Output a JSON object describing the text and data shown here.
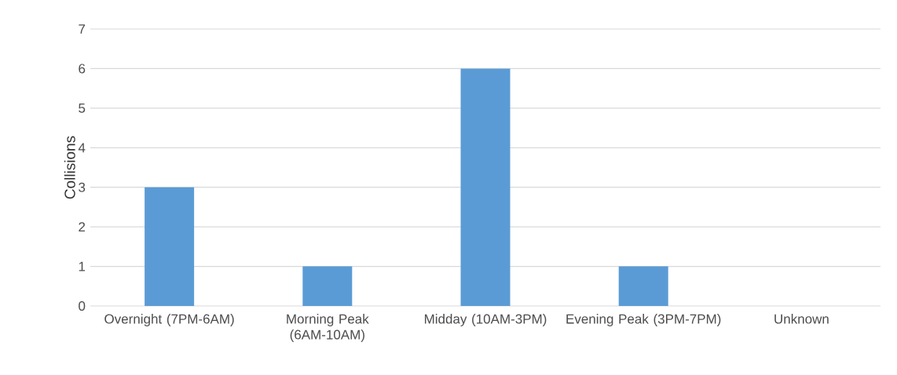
{
  "chart_data": {
    "type": "bar",
    "ylabel": "Collisions",
    "categories": [
      "Overnight (7PM-6AM)",
      "Morning Peak (6AM-10AM)",
      "Midday (10AM-3PM)",
      "Evening Peak (3PM-7PM)",
      "Unknown"
    ],
    "values": [
      3,
      1,
      6,
      1,
      0
    ],
    "color": "#5b9bd5",
    "ylim": [
      0,
      7
    ],
    "yticks": [
      0,
      1,
      2,
      3,
      4,
      5,
      6,
      7
    ],
    "grid": "y"
  }
}
